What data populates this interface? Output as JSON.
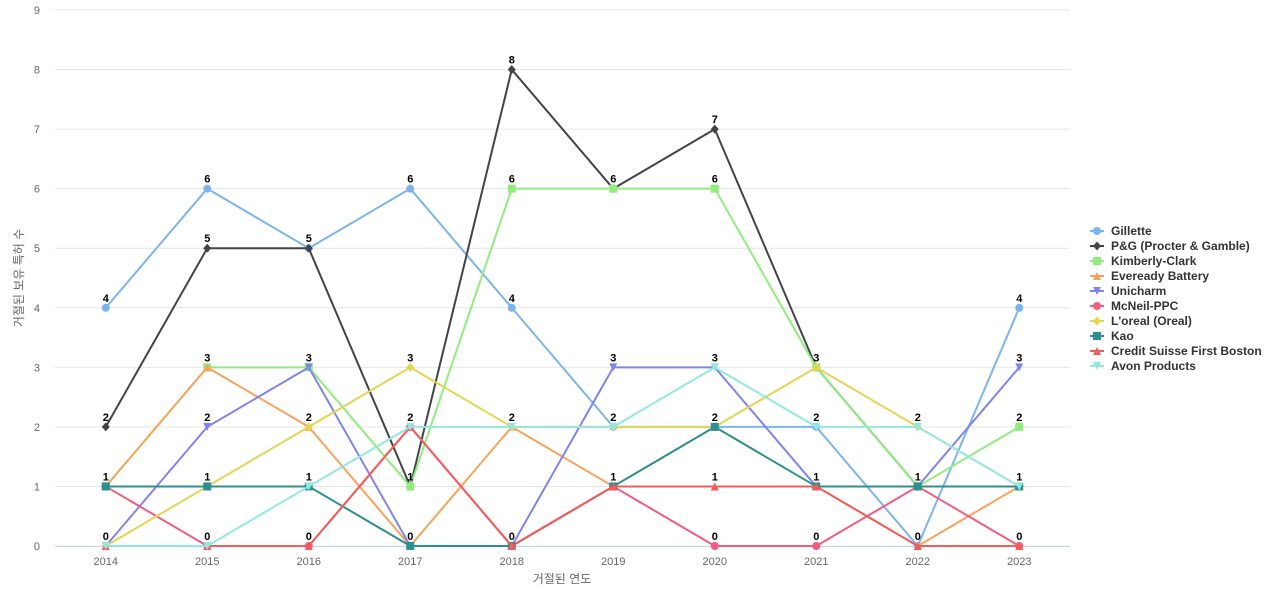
{
  "chart_data": {
    "type": "line",
    "title": "",
    "xlabel": "거절된 연도",
    "ylabel": "거절된 보유 특허 수",
    "x": [
      "2014",
      "2015",
      "2016",
      "2017",
      "2018",
      "2019",
      "2020",
      "2021",
      "2022",
      "2023"
    ],
    "ylim": [
      0,
      9
    ],
    "yticks": [
      0,
      1,
      2,
      3,
      4,
      5,
      6,
      7,
      8,
      9
    ],
    "grid": true,
    "legend_position": "right",
    "series": [
      {
        "name": "Gillette",
        "color": "#7cb5ec",
        "marker": "circle",
        "values": [
          4,
          6,
          5,
          6,
          4,
          2,
          2,
          2,
          0,
          4
        ]
      },
      {
        "name": "P&G (Procter & Gamble)",
        "color": "#434348",
        "marker": "diamond",
        "values": [
          2,
          5,
          5,
          1,
          8,
          6,
          7,
          3,
          1,
          1
        ]
      },
      {
        "name": "Kimberly-Clark",
        "color": "#90ed7d",
        "marker": "square",
        "values": [
          1,
          3,
          3,
          1,
          6,
          6,
          6,
          3,
          1,
          2
        ]
      },
      {
        "name": "Eveready Battery",
        "color": "#f7a35c",
        "marker": "triangle",
        "values": [
          1,
          3,
          2,
          0,
          2,
          1,
          1,
          1,
          0,
          1
        ]
      },
      {
        "name": "Unicharm",
        "color": "#8085e9",
        "marker": "triangle-down",
        "values": [
          0,
          2,
          3,
          0,
          0,
          3,
          3,
          1,
          1,
          3
        ]
      },
      {
        "name": "McNeil-PPC",
        "color": "#f15c80",
        "marker": "circle",
        "values": [
          1,
          0,
          0,
          2,
          0,
          1,
          0,
          0,
          1,
          0
        ]
      },
      {
        "name": "L'oreal (Oreal)",
        "color": "#e4d354",
        "marker": "diamond",
        "values": [
          0,
          1,
          2,
          3,
          2,
          2,
          2,
          3,
          2,
          1
        ]
      },
      {
        "name": "Kao",
        "color": "#2b908f",
        "marker": "square",
        "values": [
          1,
          1,
          1,
          0,
          0,
          1,
          2,
          1,
          1,
          1
        ]
      },
      {
        "name": "Credit Suisse First Boston",
        "color": "#f45b5b",
        "marker": "triangle",
        "values": [
          0,
          0,
          0,
          2,
          0,
          1,
          1,
          1,
          0,
          0
        ]
      },
      {
        "name": "Avon Products",
        "color": "#91e8e1",
        "marker": "triangle-down",
        "values": [
          0,
          0,
          1,
          2,
          2,
          2,
          3,
          2,
          2,
          1
        ]
      }
    ],
    "data_labels": [
      {
        "x": "2014",
        "value": 4
      },
      {
        "x": "2014",
        "value": 2
      },
      {
        "x": "2014",
        "value": 1
      },
      {
        "x": "2014",
        "value": 0
      },
      {
        "x": "2015",
        "value": 6
      },
      {
        "x": "2015",
        "value": 5
      },
      {
        "x": "2015",
        "value": 3
      },
      {
        "x": "2015",
        "value": 2
      },
      {
        "x": "2015",
        "value": 1
      },
      {
        "x": "2015",
        "value": 0
      },
      {
        "x": "2016",
        "value": 5
      },
      {
        "x": "2016",
        "value": 3
      },
      {
        "x": "2016",
        "value": 2
      },
      {
        "x": "2016",
        "value": 1
      },
      {
        "x": "2016",
        "value": 0
      },
      {
        "x": "2017",
        "value": 6
      },
      {
        "x": "2017",
        "value": 3
      },
      {
        "x": "2017",
        "value": 2
      },
      {
        "x": "2017",
        "value": 1
      },
      {
        "x": "2017",
        "value": 0
      },
      {
        "x": "2018",
        "value": 8
      },
      {
        "x": "2018",
        "value": 6
      },
      {
        "x": "2018",
        "value": 4
      },
      {
        "x": "2018",
        "value": 2
      },
      {
        "x": "2018",
        "value": 0
      },
      {
        "x": "2019",
        "value": 6
      },
      {
        "x": "2019",
        "value": 3
      },
      {
        "x": "2019",
        "value": 2
      },
      {
        "x": "2019",
        "value": 1
      },
      {
        "x": "2020",
        "value": 7
      },
      {
        "x": "2020",
        "value": 6
      },
      {
        "x": "2020",
        "value": 3
      },
      {
        "x": "2020",
        "value": 2
      },
      {
        "x": "2020",
        "value": 1
      },
      {
        "x": "2020",
        "value": 0
      },
      {
        "x": "2021",
        "value": 3
      },
      {
        "x": "2021",
        "value": 2
      },
      {
        "x": "2021",
        "value": 1
      },
      {
        "x": "2021",
        "value": 0
      },
      {
        "x": "2022",
        "value": 2
      },
      {
        "x": "2022",
        "value": 1
      },
      {
        "x": "2022",
        "value": 0
      },
      {
        "x": "2023",
        "value": 4
      },
      {
        "x": "2023",
        "value": 3
      },
      {
        "x": "2023",
        "value": 2
      },
      {
        "x": "2023",
        "value": 1
      },
      {
        "x": "2023",
        "value": 0
      }
    ]
  }
}
